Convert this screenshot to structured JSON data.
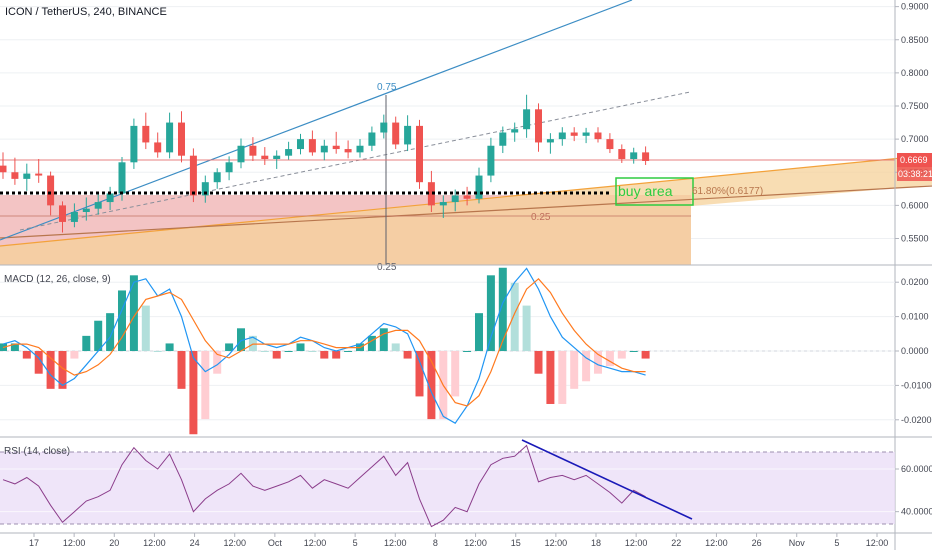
{
  "chart_data": {
    "type": "candlestick",
    "title": "ICON / TetherUS, 240, BINANCE",
    "price_panel": {
      "ylim": [
        0.51,
        0.91
      ],
      "yticks": [
        "0.9000",
        "0.8500",
        "0.8000",
        "0.7500",
        "0.7000",
        "0.6500",
        "0.6000",
        "0.5500"
      ],
      "last_price": "0.6669",
      "countdown": "03:38:21",
      "series": [
        {
          "o": 0.66,
          "h": 0.68,
          "l": 0.64,
          "c": 0.65
        },
        {
          "o": 0.65,
          "h": 0.672,
          "l": 0.631,
          "c": 0.64
        },
        {
          "o": 0.64,
          "h": 0.663,
          "l": 0.622,
          "c": 0.648
        },
        {
          "o": 0.648,
          "h": 0.67,
          "l": 0.634,
          "c": 0.645
        },
        {
          "o": 0.645,
          "h": 0.651,
          "l": 0.585,
          "c": 0.6
        },
        {
          "o": 0.6,
          "h": 0.606,
          "l": 0.559,
          "c": 0.575
        },
        {
          "o": 0.575,
          "h": 0.603,
          "l": 0.567,
          "c": 0.59
        },
        {
          "o": 0.59,
          "h": 0.612,
          "l": 0.577,
          "c": 0.595
        },
        {
          "o": 0.595,
          "h": 0.619,
          "l": 0.586,
          "c": 0.605
        },
        {
          "o": 0.605,
          "h": 0.628,
          "l": 0.593,
          "c": 0.618
        },
        {
          "o": 0.618,
          "h": 0.673,
          "l": 0.607,
          "c": 0.665
        },
        {
          "o": 0.665,
          "h": 0.731,
          "l": 0.655,
          "c": 0.72
        },
        {
          "o": 0.72,
          "h": 0.74,
          "l": 0.685,
          "c": 0.695
        },
        {
          "o": 0.695,
          "h": 0.71,
          "l": 0.672,
          "c": 0.68
        },
        {
          "o": 0.68,
          "h": 0.74,
          "l": 0.671,
          "c": 0.725
        },
        {
          "o": 0.725,
          "h": 0.742,
          "l": 0.665,
          "c": 0.675
        },
        {
          "o": 0.675,
          "h": 0.686,
          "l": 0.605,
          "c": 0.615
        },
        {
          "o": 0.615,
          "h": 0.645,
          "l": 0.604,
          "c": 0.635
        },
        {
          "o": 0.635,
          "h": 0.656,
          "l": 0.625,
          "c": 0.65
        },
        {
          "o": 0.65,
          "h": 0.674,
          "l": 0.638,
          "c": 0.665
        },
        {
          "o": 0.665,
          "h": 0.701,
          "l": 0.656,
          "c": 0.69
        },
        {
          "o": 0.69,
          "h": 0.703,
          "l": 0.667,
          "c": 0.675
        },
        {
          "o": 0.675,
          "h": 0.688,
          "l": 0.661,
          "c": 0.67
        },
        {
          "o": 0.67,
          "h": 0.683,
          "l": 0.655,
          "c": 0.675
        },
        {
          "o": 0.675,
          "h": 0.696,
          "l": 0.669,
          "c": 0.685
        },
        {
          "o": 0.685,
          "h": 0.708,
          "l": 0.677,
          "c": 0.7
        },
        {
          "o": 0.7,
          "h": 0.713,
          "l": 0.675,
          "c": 0.68
        },
        {
          "o": 0.68,
          "h": 0.699,
          "l": 0.668,
          "c": 0.69
        },
        {
          "o": 0.69,
          "h": 0.711,
          "l": 0.678,
          "c": 0.685
        },
        {
          "o": 0.685,
          "h": 0.698,
          "l": 0.671,
          "c": 0.68
        },
        {
          "o": 0.68,
          "h": 0.7,
          "l": 0.672,
          "c": 0.69
        },
        {
          "o": 0.69,
          "h": 0.719,
          "l": 0.682,
          "c": 0.71
        },
        {
          "o": 0.71,
          "h": 0.737,
          "l": 0.701,
          "c": 0.725
        },
        {
          "o": 0.725,
          "h": 0.734,
          "l": 0.685,
          "c": 0.692
        },
        {
          "o": 0.692,
          "h": 0.736,
          "l": 0.682,
          "c": 0.72
        },
        {
          "o": 0.72,
          "h": 0.729,
          "l": 0.625,
          "c": 0.635
        },
        {
          "o": 0.635,
          "h": 0.652,
          "l": 0.59,
          "c": 0.6
        },
        {
          "o": 0.6,
          "h": 0.615,
          "l": 0.581,
          "c": 0.605
        },
        {
          "o": 0.605,
          "h": 0.624,
          "l": 0.591,
          "c": 0.615
        },
        {
          "o": 0.615,
          "h": 0.628,
          "l": 0.6,
          "c": 0.61
        },
        {
          "o": 0.61,
          "h": 0.657,
          "l": 0.603,
          "c": 0.645
        },
        {
          "o": 0.645,
          "h": 0.702,
          "l": 0.635,
          "c": 0.69
        },
        {
          "o": 0.69,
          "h": 0.719,
          "l": 0.679,
          "c": 0.71
        },
        {
          "o": 0.71,
          "h": 0.725,
          "l": 0.696,
          "c": 0.715
        },
        {
          "o": 0.715,
          "h": 0.767,
          "l": 0.702,
          "c": 0.745
        },
        {
          "o": 0.745,
          "h": 0.754,
          "l": 0.681,
          "c": 0.695
        },
        {
          "o": 0.695,
          "h": 0.709,
          "l": 0.678,
          "c": 0.7
        },
        {
          "o": 0.7,
          "h": 0.718,
          "l": 0.69,
          "c": 0.71
        },
        {
          "o": 0.71,
          "h": 0.718,
          "l": 0.697,
          "c": 0.705
        },
        {
          "o": 0.705,
          "h": 0.717,
          "l": 0.694,
          "c": 0.71
        },
        {
          "o": 0.71,
          "h": 0.718,
          "l": 0.695,
          "c": 0.7
        },
        {
          "o": 0.7,
          "h": 0.709,
          "l": 0.679,
          "c": 0.685
        },
        {
          "o": 0.685,
          "h": 0.692,
          "l": 0.664,
          "c": 0.67
        },
        {
          "o": 0.67,
          "h": 0.687,
          "l": 0.663,
          "c": 0.68
        },
        {
          "o": 0.68,
          "h": 0.689,
          "l": 0.661,
          "c": 0.667
        }
      ],
      "annotations": [
        {
          "label": "0.75",
          "value": 0.765
        },
        {
          "label": "0.25",
          "value": 0.578
        },
        {
          "label": "0.25",
          "value": 0.515
        },
        {
          "label": "buy area",
          "value": 0.612
        },
        {
          "label": "61.80%(0.6177)",
          "value": 0.6177
        }
      ],
      "support_level": 0.6177
    },
    "macd_panel": {
      "label": "MACD (12, 26, close, 9)",
      "ylim": [
        -0.025,
        0.025
      ],
      "yticks": [
        "0.0200",
        "0.0100",
        "0.0000",
        "-0.0100",
        "-0.0200"
      ],
      "macd": [
        0.002,
        0.003,
        0.001,
        -0.002,
        -0.007,
        -0.01,
        -0.008,
        -0.004,
        0.0,
        0.004,
        0.012,
        0.02,
        0.021,
        0.016,
        0.018,
        0.01,
        -0.002,
        -0.006,
        -0.004,
        -0.001,
        0.003,
        0.004,
        0.002,
        0.001,
        0.002,
        0.004,
        0.003,
        0.001,
        0.0,
        0.001,
        0.002,
        0.005,
        0.008,
        0.007,
        0.005,
        -0.003,
        -0.012,
        -0.019,
        -0.021,
        -0.016,
        -0.008,
        0.004,
        0.014,
        0.02,
        0.024,
        0.018,
        0.01,
        0.004,
        0.001,
        -0.002,
        -0.004,
        -0.005,
        -0.006,
        -0.006,
        -0.007
      ],
      "signal": [
        0.001,
        0.002,
        0.002,
        0.001,
        -0.002,
        -0.005,
        -0.007,
        -0.006,
        -0.004,
        -0.001,
        0.004,
        0.01,
        0.015,
        0.016,
        0.017,
        0.015,
        0.009,
        0.003,
        -0.001,
        -0.002,
        0.0,
        0.002,
        0.002,
        0.002,
        0.002,
        0.003,
        0.003,
        0.002,
        0.001,
        0.001,
        0.001,
        0.003,
        0.005,
        0.006,
        0.006,
        0.003,
        -0.003,
        -0.01,
        -0.015,
        -0.016,
        -0.013,
        -0.006,
        0.003,
        0.011,
        0.018,
        0.021,
        0.017,
        0.011,
        0.006,
        0.002,
        -0.001,
        -0.003,
        -0.005,
        -0.006,
        -0.006
      ]
    },
    "rsi_panel": {
      "label": "RSI (14, close)",
      "ylim": [
        30,
        75
      ],
      "yticks": [
        "60.0000",
        "40.0000"
      ],
      "bands": [
        70,
        30
      ],
      "values": [
        55,
        53,
        56,
        52,
        43,
        35,
        40,
        45,
        47,
        50,
        62,
        70,
        64,
        60,
        67,
        55,
        40,
        46,
        50,
        53,
        58,
        52,
        50,
        52,
        54,
        57,
        51,
        55,
        53,
        51,
        56,
        61,
        66,
        57,
        63,
        46,
        33,
        36,
        42,
        40,
        53,
        62,
        65,
        66,
        71,
        54,
        56,
        57,
        55,
        57,
        53,
        49,
        44,
        50,
        47
      ]
    },
    "x_axis_ticks": [
      "17",
      "12:00",
      "20",
      "12:00",
      "24",
      "12:00",
      "Oct",
      "12:00",
      "5",
      "12:00",
      "8",
      "12:00",
      "15",
      "12:00",
      "18",
      "12:00",
      "22",
      "12:00",
      "26",
      "Nov",
      "5",
      "12:00"
    ]
  }
}
